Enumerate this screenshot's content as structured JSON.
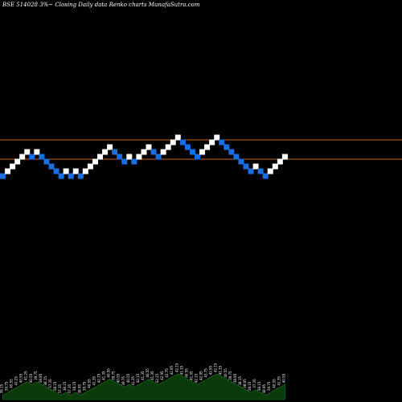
{
  "chart_data": {
    "type": "renko",
    "title": "BSE 514028  3%~  Closing Daily data  Renko  charts MunafaSutra.com",
    "colors": {
      "background": "#000000",
      "up_brick": "#ffffff",
      "down_brick": "#1a6fe0",
      "reference_line": "#c8641e",
      "volume_fill": "#0a3a0a",
      "volume_stroke": "#1f7a1f"
    },
    "reference_lines": [
      174,
      198
    ],
    "bricks": [
      {
        "dir": "down",
        "level": 219
      },
      {
        "dir": "up",
        "level": 213
      },
      {
        "dir": "up",
        "level": 207
      },
      {
        "dir": "up",
        "level": 201
      },
      {
        "dir": "up",
        "level": 195
      },
      {
        "dir": "up",
        "level": 189
      },
      {
        "dir": "down",
        "level": 195
      },
      {
        "dir": "up",
        "level": 189
      },
      {
        "dir": "down",
        "level": 195
      },
      {
        "dir": "down",
        "level": 201
      },
      {
        "dir": "down",
        "level": 207
      },
      {
        "dir": "down",
        "level": 213
      },
      {
        "dir": "down",
        "level": 219
      },
      {
        "dir": "up",
        "level": 213
      },
      {
        "dir": "down",
        "level": 219
      },
      {
        "dir": "up",
        "level": 213
      },
      {
        "dir": "down",
        "level": 219
      },
      {
        "dir": "up",
        "level": 213
      },
      {
        "dir": "up",
        "level": 207
      },
      {
        "dir": "up",
        "level": 201
      },
      {
        "dir": "up",
        "level": 195
      },
      {
        "dir": "up",
        "level": 189
      },
      {
        "dir": "up",
        "level": 183
      },
      {
        "dir": "down",
        "level": 189
      },
      {
        "dir": "down",
        "level": 195
      },
      {
        "dir": "down",
        "level": 201
      },
      {
        "dir": "up",
        "level": 195
      },
      {
        "dir": "down",
        "level": 201
      },
      {
        "dir": "up",
        "level": 195
      },
      {
        "dir": "up",
        "level": 189
      },
      {
        "dir": "up",
        "level": 183
      },
      {
        "dir": "down",
        "level": 189
      },
      {
        "dir": "down",
        "level": 195
      },
      {
        "dir": "up",
        "level": 189
      },
      {
        "dir": "up",
        "level": 183
      },
      {
        "dir": "up",
        "level": 177
      },
      {
        "dir": "up",
        "level": 171
      },
      {
        "dir": "down",
        "level": 177
      },
      {
        "dir": "down",
        "level": 183
      },
      {
        "dir": "down",
        "level": 189
      },
      {
        "dir": "down",
        "level": 195
      },
      {
        "dir": "up",
        "level": 189
      },
      {
        "dir": "up",
        "level": 183
      },
      {
        "dir": "up",
        "level": 177
      },
      {
        "dir": "up",
        "level": 171
      },
      {
        "dir": "down",
        "level": 177
      },
      {
        "dir": "down",
        "level": 183
      },
      {
        "dir": "down",
        "level": 189
      },
      {
        "dir": "down",
        "level": 195
      },
      {
        "dir": "down",
        "level": 201
      },
      {
        "dir": "down",
        "level": 207
      },
      {
        "dir": "down",
        "level": 213
      },
      {
        "dir": "up",
        "level": 207
      },
      {
        "dir": "down",
        "level": 213
      },
      {
        "dir": "down",
        "level": 219
      },
      {
        "dir": "up",
        "level": 213
      },
      {
        "dir": "up",
        "level": 207
      },
      {
        "dir": "up",
        "level": 201
      },
      {
        "dir": "up",
        "level": 195
      }
    ],
    "volume_labels": [
      "39.15",
      "39.75",
      "40.55",
      "41.25",
      "40.55",
      "41.25",
      "40.55",
      "39.75",
      "38.95",
      "38.15",
      "37.35",
      "38.15",
      "37.35",
      "38.15",
      "37.35",
      "38.15",
      "38.95",
      "39.75",
      "40.55",
      "41.35",
      "42.15",
      "41.35",
      "40.55",
      "39.75",
      "40.55",
      "39.75",
      "40.55",
      "41.35",
      "42.15",
      "41.35",
      "40.55",
      "41.35",
      "42.15",
      "42.95",
      "43.75",
      "42.95",
      "42.15",
      "41.35",
      "40.55",
      "41.35",
      "42.15",
      "42.95",
      "43.75",
      "42.95",
      "42.15",
      "41.35",
      "40.55",
      "39.75",
      "38.95",
      "38.15",
      "38.95",
      "38.15",
      "37.35",
      "38.15",
      "38.95",
      "39.75",
      "40.55",
      "41.35",
      "40.55"
    ]
  }
}
